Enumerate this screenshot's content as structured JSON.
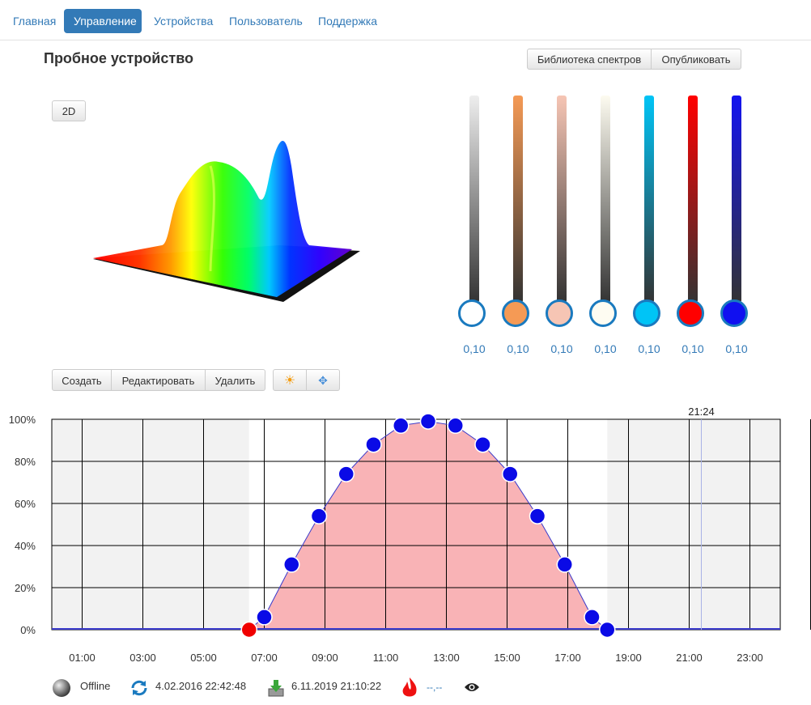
{
  "nav": [
    {
      "label": "Главная",
      "active": false
    },
    {
      "label": "Управление",
      "active": true
    },
    {
      "label": "Устройства",
      "active": false
    },
    {
      "label": "Пользователь",
      "active": false
    },
    {
      "label": "Поддержка",
      "active": false
    }
  ],
  "page_title": "Пробное устройство",
  "header_buttons": {
    "library": "Библиотека спектров",
    "publish": "Опубликовать"
  },
  "view_toggle": "2D",
  "sliders": [
    {
      "name": "white",
      "color_top": "#eeeeee",
      "knob": "#ffffff",
      "value": "0,10"
    },
    {
      "name": "orange",
      "color_top": "#f59a55",
      "knob": "#f59a55",
      "value": "0,10"
    },
    {
      "name": "peach",
      "color_top": "#f6c5b4",
      "knob": "#f6c5b4",
      "value": "0,10"
    },
    {
      "name": "warm-white",
      "color_top": "#fdfbf0",
      "knob": "#fefcf2",
      "value": "0,10"
    },
    {
      "name": "cyan",
      "color_top": "#00c4f6",
      "knob": "#00c4f6",
      "value": "0,10"
    },
    {
      "name": "red",
      "color_top": "#ff0000",
      "knob": "#ff0000",
      "value": "0,10"
    },
    {
      "name": "blue",
      "color_top": "#1414f0",
      "knob": "#1010f0",
      "value": "0,10"
    }
  ],
  "toolbar": {
    "create": "Создать",
    "edit": "Редактировать",
    "delete": "Удалить"
  },
  "chart_data": {
    "type": "area",
    "title": "",
    "xlabel": "",
    "ylabel": "",
    "xlim": [
      0,
      24
    ],
    "ylim": [
      0,
      100
    ],
    "x_ticks": [
      "01:00",
      "03:00",
      "05:00",
      "07:00",
      "09:00",
      "11:00",
      "13:00",
      "15:00",
      "17:00",
      "19:00",
      "21:00",
      "23:00"
    ],
    "y_ticks": [
      "0%",
      "20%",
      "40%",
      "60%",
      "80%",
      "100%"
    ],
    "current_time_label": "21:24",
    "current_time": 21.4,
    "series": [
      {
        "x": [
          6.5,
          7.0,
          7.9,
          8.8,
          9.7,
          10.6,
          11.5,
          12.4,
          13.3,
          14.2,
          15.1,
          16.0,
          16.9,
          17.8,
          18.3
        ],
        "y": [
          0,
          6,
          31,
          54,
          74,
          88,
          97,
          99,
          97,
          88,
          74,
          54,
          31,
          6,
          0
        ]
      }
    ],
    "selected_point_index": 0,
    "colors": {
      "fill": "#f9b3b6",
      "line": "#3a3acb",
      "point": "#0a0ae6",
      "selected": "#f00000",
      "grid": "#000000",
      "shade": "#f2f2f2"
    }
  },
  "status": {
    "connection": "Offline",
    "sync_time": "4.02.2016 22:42:48",
    "download_time": "6.11.2019 21:10:22",
    "temperature": "--,--"
  }
}
